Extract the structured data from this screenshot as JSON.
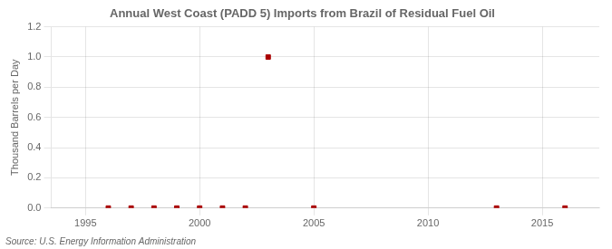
{
  "chart_data": {
    "type": "scatter",
    "title": "Annual West Coast (PADD 5) Imports from Brazil of Residual Fuel Oil",
    "ylabel": "Thousand Barrels per Day",
    "source": "Source: U.S. Energy Information Administration",
    "x": [
      1996,
      1997,
      1998,
      1999,
      2000,
      2001,
      2002,
      2003,
      2005,
      2013,
      2016
    ],
    "values": [
      0.0,
      0.0,
      0.0,
      0.0,
      0.0,
      0.0,
      0.0,
      1.0,
      0.0,
      0.0,
      0.0
    ],
    "color": "#aa0000",
    "marker": "square",
    "xlim": [
      1993.5,
      2017.5
    ],
    "xticks": [
      1995,
      2000,
      2005,
      2010,
      2015
    ],
    "ylim": [
      0.0,
      1.2
    ],
    "yticks": [
      {
        "value": 0.0,
        "label": "0.0"
      },
      {
        "value": 0.2,
        "label": "0.2"
      },
      {
        "value": 0.4,
        "label": "0.4"
      },
      {
        "value": 0.6,
        "label": "0.6"
      },
      {
        "value": 0.8,
        "label": "0.8"
      },
      {
        "value": 1.0,
        "label": "1.0"
      },
      {
        "value": 1.2,
        "label": "1.2"
      }
    ],
    "grid": true
  }
}
